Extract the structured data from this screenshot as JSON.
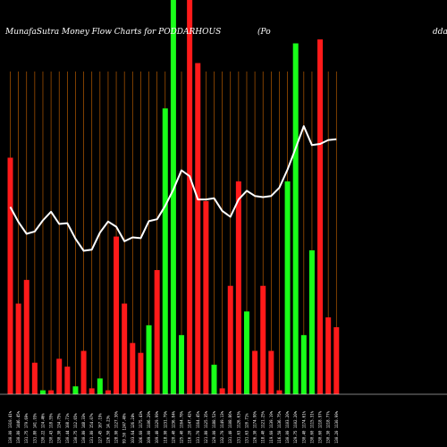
{
  "title": {
    "left": "MunafaSutra  Money Flow  Charts for PODDARHOUS",
    "mid": "(Po",
    "right": "ddar"
  },
  "chart_data": {
    "type": "bar",
    "ylim": [
      0,
      100
    ],
    "colors": {
      "up": "#19ff19",
      "down": "#ff1a1a",
      "grid": "#b35900",
      "line": "#ffffff",
      "background": "#000000"
    },
    "categories": [
      "130.00 1310.41%",
      "130.80 1446.45%",
      "131.75 179.69%",
      "131.80 141.93%",
      "130.22 124.46%",
      "130.43 118.55%",
      "130.30 134.75%",
      "130.44 108.71%",
      "130.75 112.65%",
      "130.80 148.33%",
      "131.80 154.07%",
      "127.45 167.19%",
      "126.50 14.23%",
      "128.90 1127.30%",
      "99.50 1247.40%",
      "103.64 126.24%",
      "106.60 1175.43%",
      "109.00 1106.29%",
      "109.40 1129.99%",
      "118.90 1231.79%",
      "120.40 1236.84%",
      "125.40 1164.78%",
      "116.20 1147.42%",
      "131.70 1164.45%",
      "121.80 1125.35%",
      "129.00 1188.52%",
      "132.70 1149.13%",
      "131.40 1108.86%",
      "131.63 1126.63%",
      "131.63 120.71%",
      "126.30 1174.90%",
      "118.40 1121.25%",
      "119.60 1139.19%",
      "116.50 1136.75%",
      "130.00 1103.20%",
      "129.75 1102.20%",
      "130.40 1174.61%",
      "130.60 1115.31%",
      "130.60 1218.97%",
      "130.30 1218.77%",
      "130.20 1130.99%"
    ],
    "values": [
      60,
      23,
      29,
      8,
      1,
      1,
      9,
      7,
      2,
      11,
      1.5,
      4,
      1,
      40,
      23,
      13,
      10.5,
      17.5,
      31.5,
      72.5,
      100,
      15,
      100,
      84,
      49,
      7.5,
      1.5,
      27.5,
      54,
      21,
      11,
      27.5,
      11,
      1,
      54,
      89,
      15,
      36.5,
      90,
      19.5,
      17
    ],
    "directions": [
      "down",
      "down",
      "down",
      "down",
      "up",
      "down",
      "down",
      "down",
      "up",
      "down",
      "down",
      "up",
      "down",
      "down",
      "down",
      "down",
      "down",
      "up",
      "down",
      "up",
      "up",
      "up",
      "down",
      "down",
      "down",
      "up",
      "down",
      "down",
      "down",
      "up",
      "down",
      "down",
      "down",
      "down",
      "up",
      "up",
      "up",
      "up",
      "down",
      "down",
      "down"
    ],
    "line": [
      47.5,
      43.7,
      40.7,
      41.3,
      44.1,
      46.3,
      43.2,
      43.4,
      39.4,
      36.4,
      36.7,
      41.0,
      43.8,
      42.5,
      38.8,
      39.8,
      39.6,
      43.9,
      44.4,
      47.8,
      51.9,
      56.8,
      55.3,
      49.4,
      49.4,
      49.7,
      46.5,
      45.0,
      49.4,
      51.6,
      50.3,
      50.0,
      50.3,
      52.4,
      57.0,
      62.4,
      68.0,
      63.2,
      63.5,
      64.5,
      64.7
    ],
    "grid": "vertical lines at each bar"
  }
}
